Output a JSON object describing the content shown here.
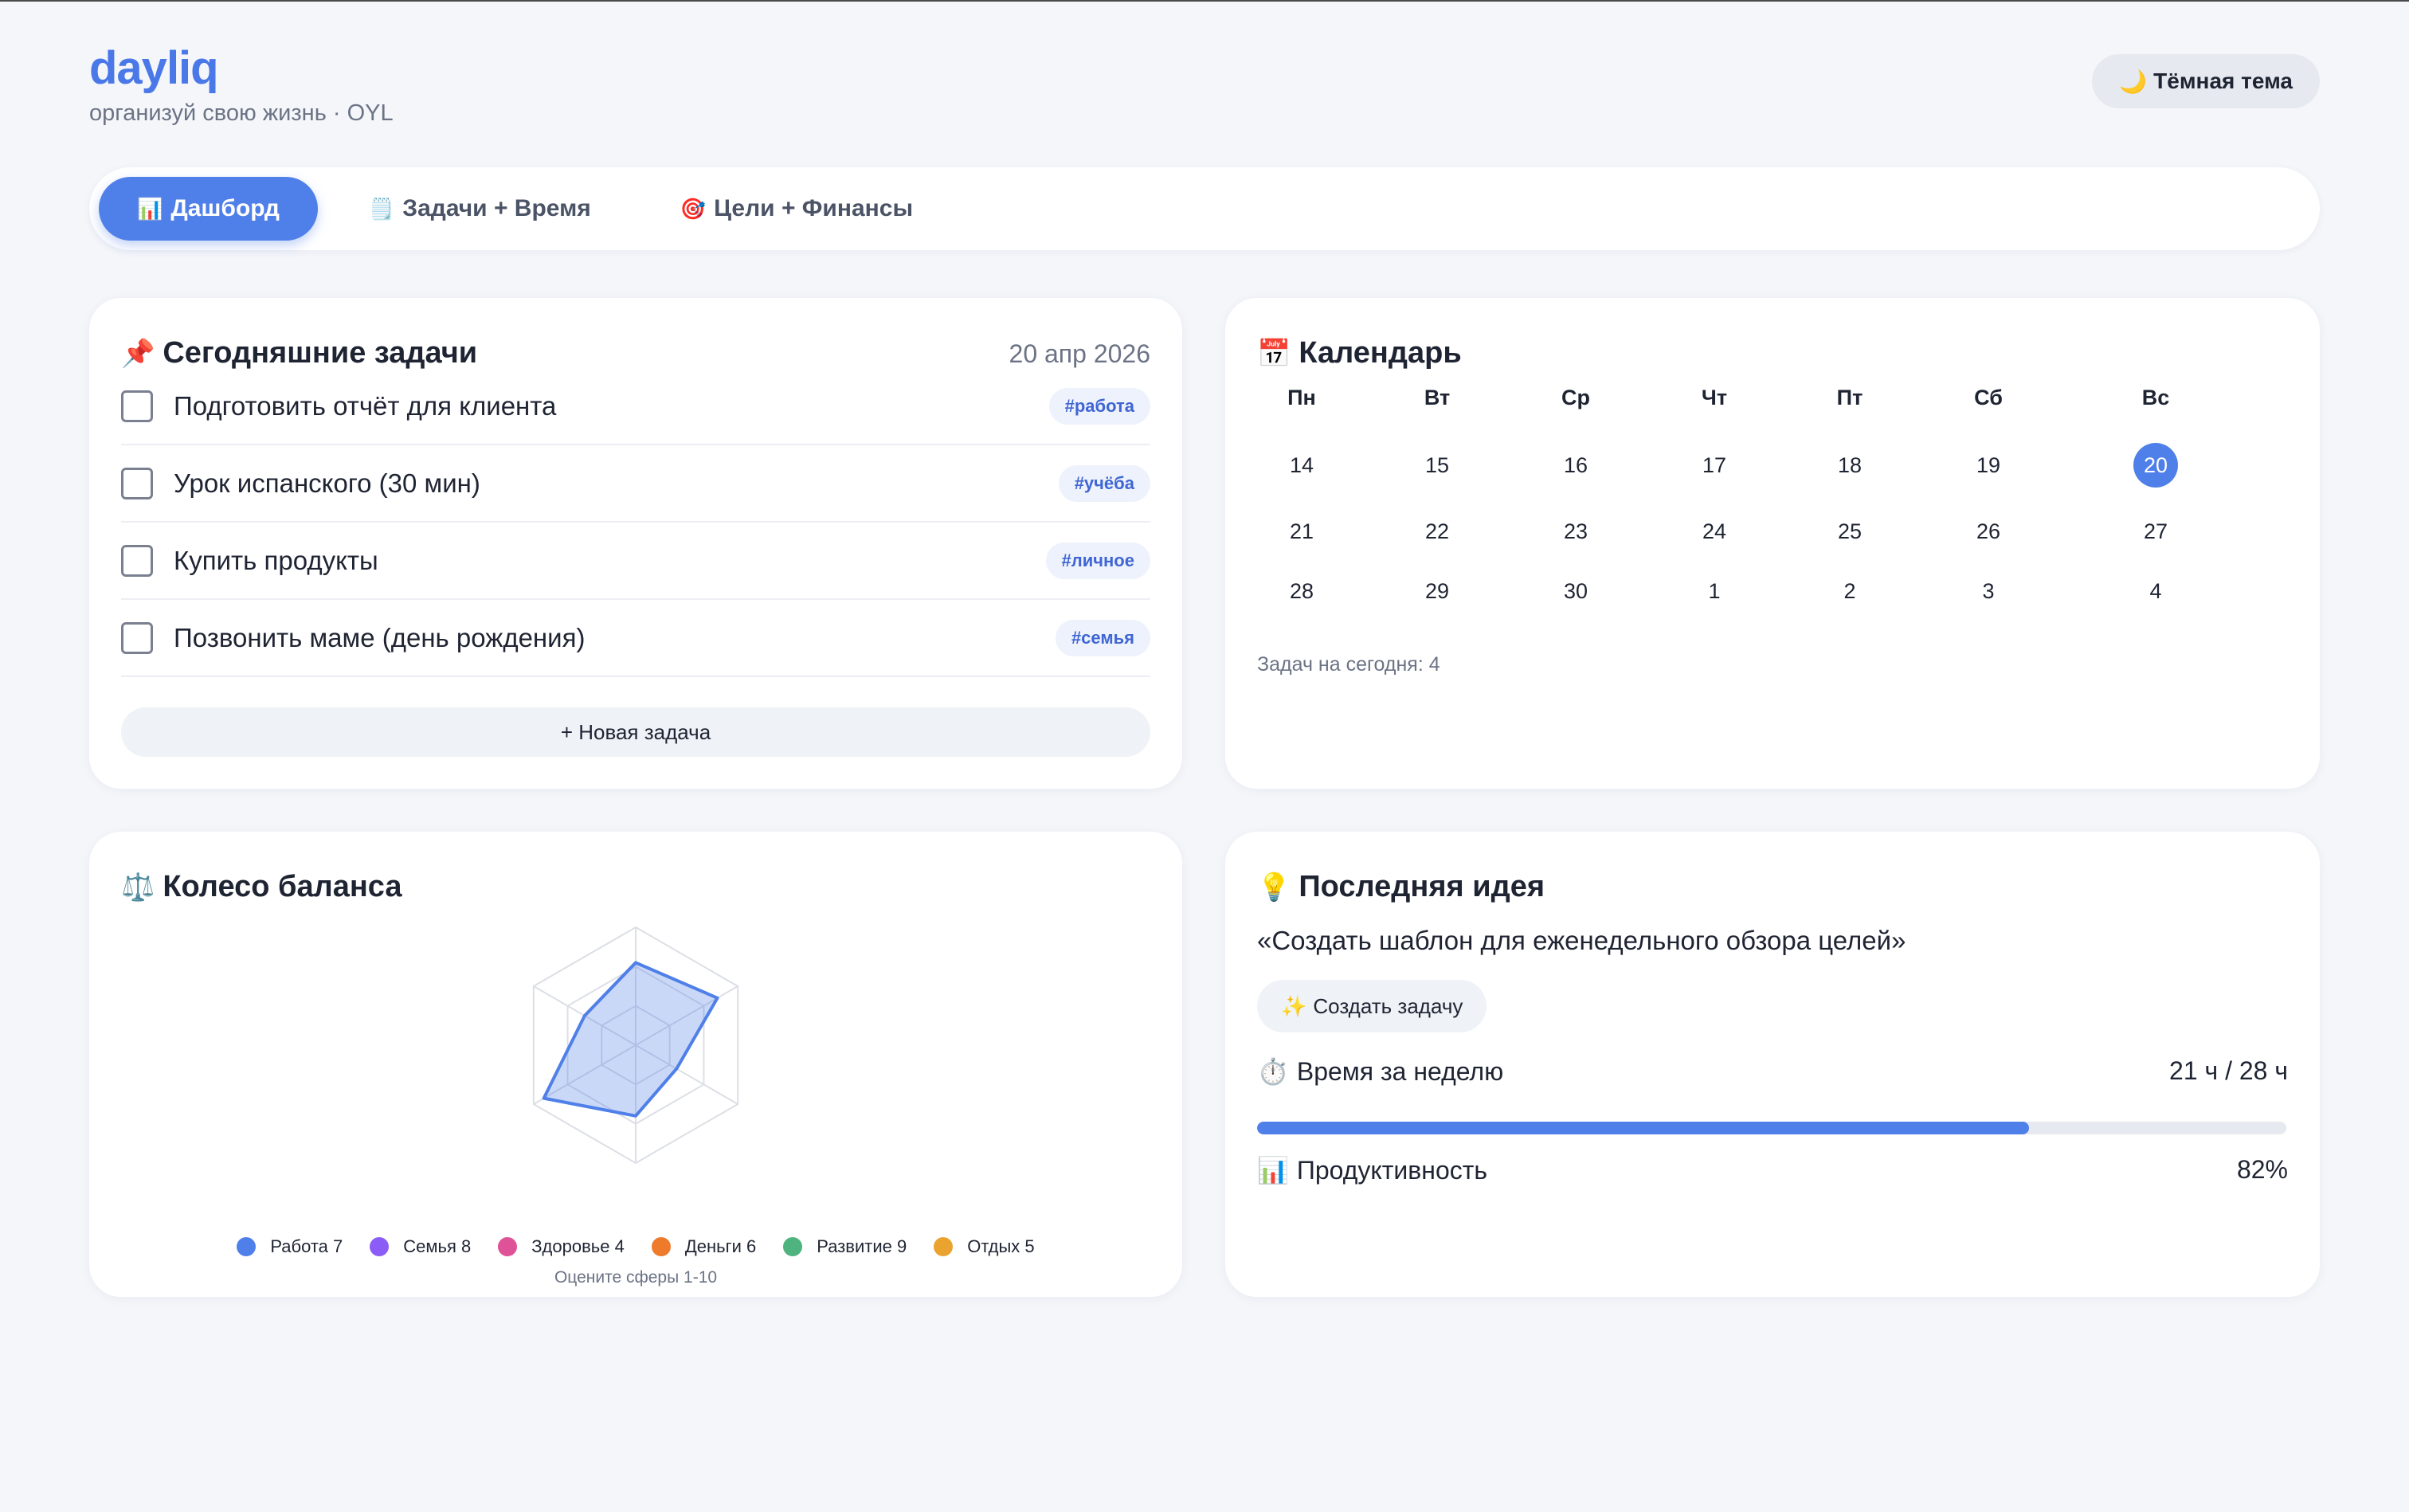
{
  "header": {
    "brand": "dayliq",
    "tagline": "организуй свою жизнь · OYL",
    "theme_button": {
      "icon": "moon-icon",
      "glyph": "🌙",
      "label": "Тёмная тема"
    }
  },
  "tabs": [
    {
      "icon": "chart-icon",
      "glyph": "📊",
      "label": "Дашборд",
      "active": true
    },
    {
      "icon": "notepad-icon",
      "glyph": "🗒️",
      "label": "Задачи + Время",
      "active": false
    },
    {
      "icon": "target-icon",
      "glyph": "🎯",
      "label": "Цели + Финансы",
      "active": false
    }
  ],
  "tasks_card": {
    "icon": "pin-icon",
    "glyph": "📌",
    "title": "Сегодняшние задачи",
    "date": "20 апр 2026",
    "tasks": [
      {
        "text": "Подготовить отчёт для клиента",
        "tag": "#работа",
        "done": false
      },
      {
        "text": "Урок испанского (30 мин)",
        "tag": "#учёба",
        "done": false
      },
      {
        "text": "Купить продукты",
        "tag": "#личное",
        "done": false
      },
      {
        "text": "Позвонить маме (день рождения)",
        "tag": "#семья",
        "done": false
      }
    ],
    "new_task_label": "+ Новая задача"
  },
  "calendar_card": {
    "icon": "calendar-icon",
    "glyph": "📅",
    "title": "Календарь",
    "weekdays": [
      "Пн",
      "Вт",
      "Ср",
      "Чт",
      "Пт",
      "Сб",
      "Вс"
    ],
    "weeks": [
      [
        "14",
        "15",
        "16",
        "17",
        "18",
        "19",
        "20"
      ],
      [
        "21",
        "22",
        "23",
        "24",
        "25",
        "26",
        "27"
      ],
      [
        "28",
        "29",
        "30",
        "1",
        "2",
        "3",
        "4"
      ]
    ],
    "today": "20",
    "footer": "Задач на сегодня: 4"
  },
  "balance_card": {
    "icon": "scales-icon",
    "glyph": "⚖️",
    "title": "Колесо баланса",
    "scale_max": 10,
    "spheres": [
      {
        "label": "Работа 7",
        "name": "Работа",
        "value": 7,
        "color": "#4f7fe8"
      },
      {
        "label": "Семья 8",
        "name": "Семья",
        "value": 8,
        "color": "#8b5cf6"
      },
      {
        "label": "Здоровье 4",
        "name": "Здоровье",
        "value": 4,
        "color": "#e05297"
      },
      {
        "label": "Деньги 6",
        "name": "Деньги",
        "value": 6,
        "color": "#ee7a2b"
      },
      {
        "label": "Развитие 9",
        "name": "Развитие",
        "value": 9,
        "color": "#4eb37e"
      },
      {
        "label": "Отдых 5",
        "name": "Отдых",
        "value": 5,
        "color": "#eba32f"
      }
    ],
    "hint": "Оцените сферы 1-10"
  },
  "idea_card": {
    "icon": "lightbulb-icon",
    "glyph": "💡",
    "title": "Последняя идея",
    "idea": "«Создать шаблон для еженедельного обзора целей»",
    "create_button": {
      "icon": "sparkles-icon",
      "glyph": "✨",
      "label": "Создать задачу"
    },
    "time": {
      "icon": "stopwatch-icon",
      "glyph": "⏱️",
      "label": "Время за неделю",
      "value": "21 ч / 28 ч",
      "fraction": 0.75
    },
    "productivity": {
      "icon": "chart-icon",
      "glyph": "📊",
      "label": "Продуктивность",
      "value": "82%"
    }
  },
  "colors": {
    "accent": "#4f7fe8",
    "background": "#f4f6fa",
    "card": "#ffffff"
  }
}
